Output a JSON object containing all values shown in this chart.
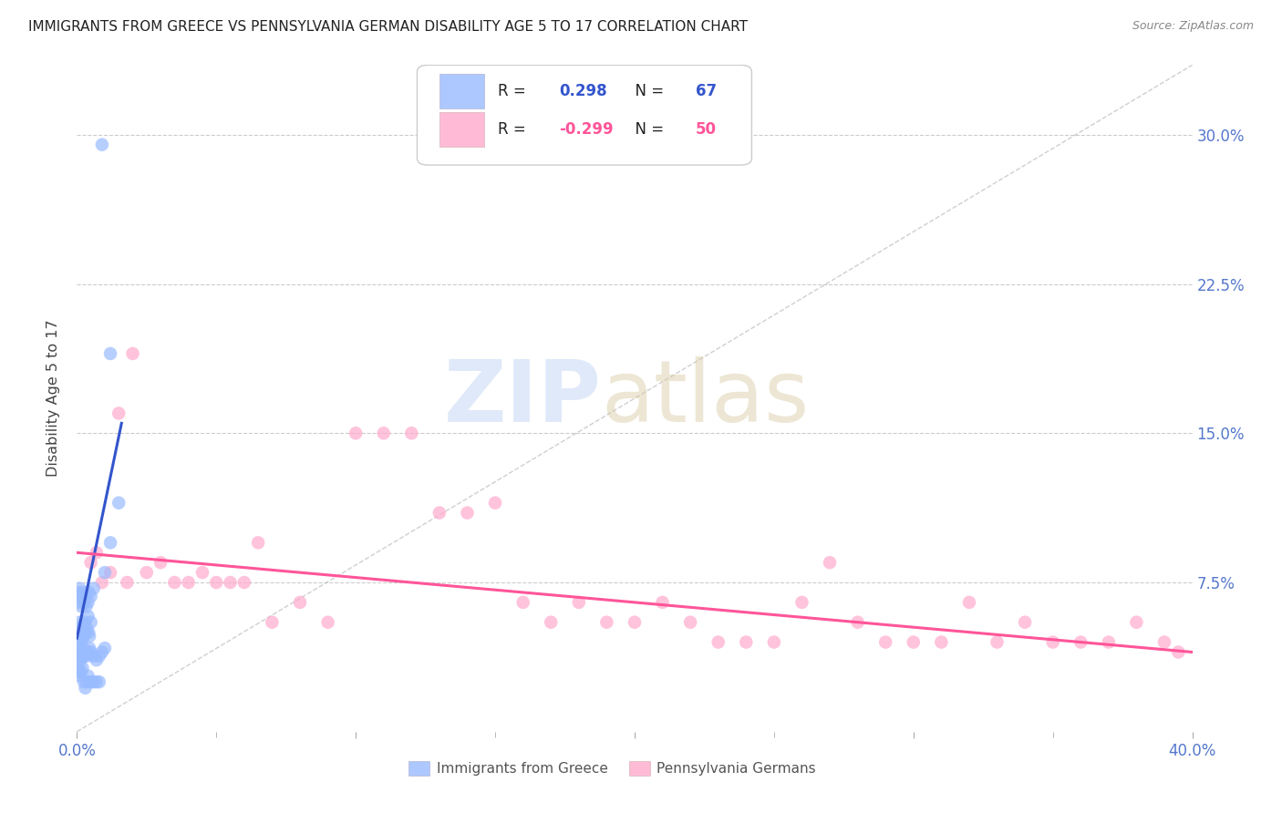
{
  "title": "IMMIGRANTS FROM GREECE VS PENNSYLVANIA GERMAN DISABILITY AGE 5 TO 17 CORRELATION CHART",
  "source": "Source: ZipAtlas.com",
  "ylabel": "Disability Age 5 to 17",
  "ytick_labels": [
    "7.5%",
    "15.0%",
    "22.5%",
    "30.0%"
  ],
  "ytick_values": [
    0.075,
    0.15,
    0.225,
    0.3
  ],
  "xlim": [
    0.0,
    0.4
  ],
  "ylim": [
    0.0,
    0.335
  ],
  "legend_blue_r": "R =  0.298",
  "legend_blue_n": "N = 67",
  "legend_pink_r": "R = -0.299",
  "legend_pink_n": "N = 50",
  "legend_blue_label": "Immigrants from Greece",
  "legend_pink_label": "Pennsylvania Germans",
  "blue_color": "#99bbff",
  "pink_color": "#ffaacc",
  "blue_line_color": "#3355cc",
  "pink_line_color": "#ff5599",
  "dashed_line_color": "#bbbbbb",
  "scatter_blue_x": [
    0.0005,
    0.0008,
    0.001,
    0.0012,
    0.0015,
    0.0018,
    0.002,
    0.0022,
    0.0025,
    0.003,
    0.0032,
    0.0035,
    0.004,
    0.0042,
    0.0045,
    0.005,
    0.0005,
    0.0007,
    0.001,
    0.0013,
    0.0016,
    0.002,
    0.0023,
    0.0026,
    0.003,
    0.0033,
    0.004,
    0.0043,
    0.005,
    0.006,
    0.0004,
    0.0006,
    0.0008,
    0.001,
    0.0012,
    0.0015,
    0.002,
    0.0022,
    0.0025,
    0.003,
    0.0035,
    0.004,
    0.0045,
    0.005,
    0.006,
    0.007,
    0.008,
    0.009,
    0.01,
    0.0005,
    0.0007,
    0.001,
    0.0015,
    0.002,
    0.0025,
    0.003,
    0.0035,
    0.004,
    0.005,
    0.006,
    0.007,
    0.008,
    0.01,
    0.012,
    0.015,
    0.012,
    0.009
  ],
  "scatter_blue_y": [
    0.045,
    0.05,
    0.055,
    0.048,
    0.052,
    0.046,
    0.05,
    0.054,
    0.048,
    0.055,
    0.05,
    0.052,
    0.058,
    0.05,
    0.048,
    0.055,
    0.065,
    0.07,
    0.072,
    0.068,
    0.063,
    0.066,
    0.07,
    0.065,
    0.068,
    0.063,
    0.065,
    0.07,
    0.068,
    0.072,
    0.04,
    0.042,
    0.038,
    0.04,
    0.036,
    0.038,
    0.04,
    0.042,
    0.038,
    0.04,
    0.038,
    0.04,
    0.042,
    0.04,
    0.038,
    0.036,
    0.038,
    0.04,
    0.042,
    0.03,
    0.032,
    0.028,
    0.03,
    0.032,
    0.025,
    0.022,
    0.025,
    0.028,
    0.025,
    0.025,
    0.025,
    0.025,
    0.08,
    0.095,
    0.115,
    0.19,
    0.295
  ],
  "scatter_pink_x": [
    0.005,
    0.007,
    0.009,
    0.012,
    0.015,
    0.018,
    0.02,
    0.025,
    0.03,
    0.035,
    0.04,
    0.045,
    0.05,
    0.055,
    0.06,
    0.065,
    0.07,
    0.08,
    0.09,
    0.1,
    0.11,
    0.12,
    0.13,
    0.14,
    0.15,
    0.16,
    0.17,
    0.18,
    0.19,
    0.2,
    0.21,
    0.22,
    0.23,
    0.24,
    0.25,
    0.26,
    0.27,
    0.28,
    0.29,
    0.3,
    0.31,
    0.32,
    0.33,
    0.34,
    0.35,
    0.36,
    0.37,
    0.38,
    0.39,
    0.395
  ],
  "scatter_pink_y": [
    0.085,
    0.09,
    0.075,
    0.08,
    0.16,
    0.075,
    0.19,
    0.08,
    0.085,
    0.075,
    0.075,
    0.08,
    0.075,
    0.075,
    0.075,
    0.095,
    0.055,
    0.065,
    0.055,
    0.15,
    0.15,
    0.15,
    0.11,
    0.11,
    0.115,
    0.065,
    0.055,
    0.065,
    0.055,
    0.055,
    0.065,
    0.055,
    0.045,
    0.045,
    0.045,
    0.065,
    0.085,
    0.055,
    0.045,
    0.045,
    0.045,
    0.065,
    0.045,
    0.055,
    0.045,
    0.045,
    0.045,
    0.055,
    0.045,
    0.04
  ],
  "blue_trendline_x": [
    0.0,
    0.016
  ],
  "blue_trendline_y": [
    0.047,
    0.155
  ],
  "pink_trendline_x": [
    0.0,
    0.4
  ],
  "pink_trendline_y": [
    0.09,
    0.04
  ],
  "dashed_line_x": [
    0.0,
    0.4
  ],
  "dashed_line_y": [
    0.0,
    0.335
  ],
  "watermark_zip": "ZIP",
  "watermark_atlas": "atlas",
  "background_color": "#ffffff",
  "title_fontsize": 11,
  "axis_tick_color": "#5577cc",
  "grid_color": "#cccccc",
  "legend_text_dark": "#222222",
  "legend_r_color": "#3355cc",
  "legend_r2_color": "#ff5599"
}
